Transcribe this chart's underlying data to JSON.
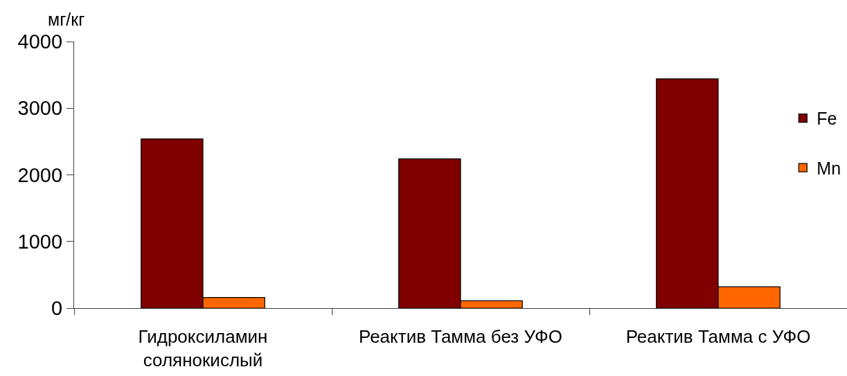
{
  "chart_data": {
    "type": "bar",
    "ylabel": "мг/кг",
    "categories": [
      "Гидроксиламин солянокислый",
      "Реактив Тамма без УФО",
      "Реактив Тамма с УФО"
    ],
    "series": [
      {
        "name": "Fe",
        "color": "#800000",
        "values": [
          2540,
          2240,
          3440
        ]
      },
      {
        "name": "Mn",
        "color": "#ff6600",
        "values": [
          160,
          110,
          320
        ]
      }
    ],
    "ylim": [
      0,
      4000
    ],
    "yticks": [
      0,
      1000,
      2000,
      3000,
      4000
    ],
    "legend": "right"
  }
}
